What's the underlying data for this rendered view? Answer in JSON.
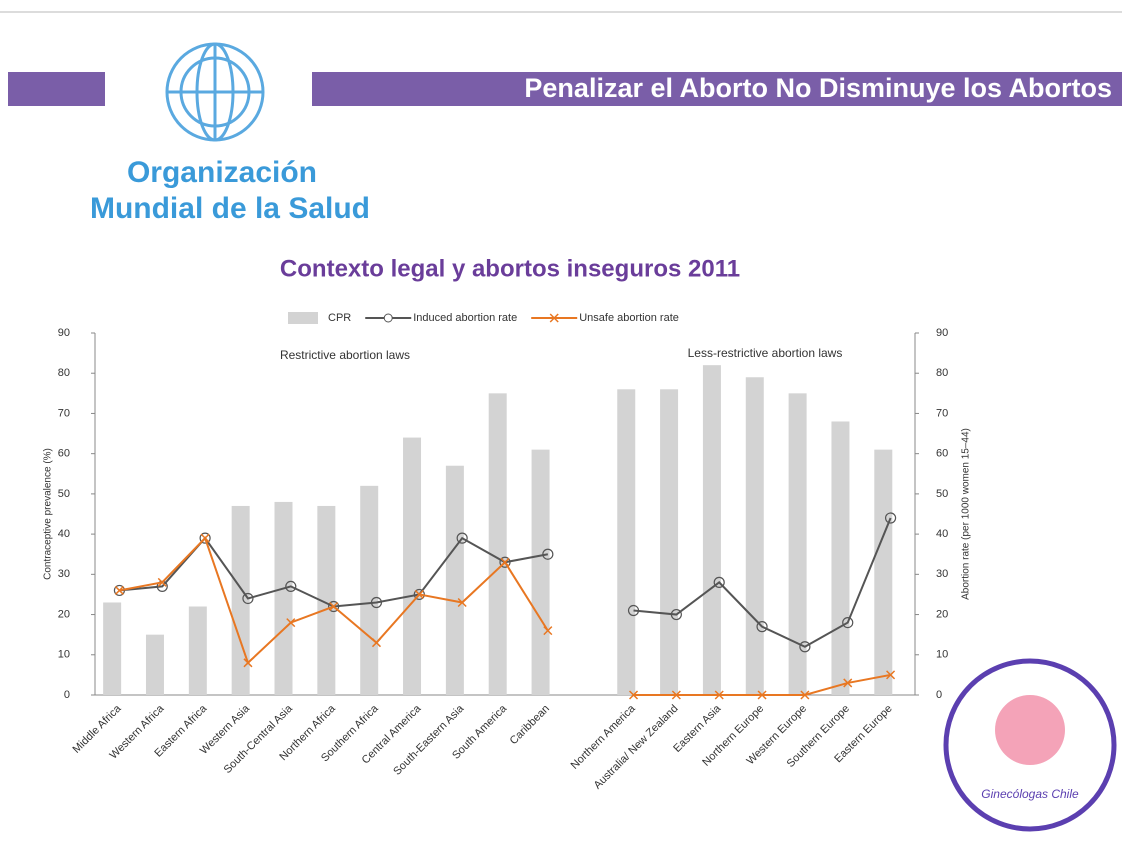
{
  "slide": {
    "title": "Penalizar el Aborto No Disminuye los Abortos",
    "org": [
      "Organización",
      "Mundial de la Salud"
    ],
    "badge": "Ginecólogas Chile"
  },
  "chart_data": {
    "type": "bar-line",
    "title": "Contexto legal y abortos inseguros 2011",
    "annotations": [
      "Restrictive abortion laws",
      "Less-restrictive abortion laws"
    ],
    "ylabel": "Contraceptive prevalence (%)",
    "y2label": "Abortion rate (per 1000 women 15–44)",
    "categories": [
      "Middle Africa",
      "Western Africa",
      "Eastern Africa",
      "Western Asia",
      "South-Central Asia",
      "Northern Africa",
      "Southern Africa",
      "Central America",
      "South-Eastern Asia",
      "South America",
      "Caribbean",
      null,
      "Northern America",
      "Australia/ New Zealand",
      "Eastern Asia",
      "Northern Europe",
      "Western Europe",
      "Southern Europe",
      "Eastern Europe"
    ],
    "series": [
      {
        "name": "CPR",
        "color": "#d3d3d3",
        "kind": "bar",
        "values": [
          23,
          15,
          22,
          47,
          48,
          47,
          52,
          64,
          57,
          75,
          61,
          null,
          76,
          76,
          82,
          79,
          75,
          68,
          61
        ]
      },
      {
        "name": "Induced abortion rate",
        "color": "#555555",
        "kind": "line",
        "marker": "circle",
        "axis": "y2",
        "values": [
          26,
          27,
          39,
          24,
          27,
          22,
          23,
          25,
          39,
          33,
          35,
          null,
          21,
          20,
          28,
          17,
          12,
          18,
          44
        ]
      },
      {
        "name": "Unsafe abortion rate",
        "color": "#e87722",
        "kind": "line",
        "marker": "x",
        "axis": "y2",
        "values": [
          26,
          28,
          39,
          8,
          18,
          22,
          13,
          25,
          23,
          33,
          16,
          null,
          0,
          0,
          0,
          0,
          0,
          3,
          5
        ]
      }
    ],
    "ylim": [
      0,
      90
    ],
    "yticks": [
      0,
      10,
      20,
      30,
      40,
      50,
      60,
      70,
      80,
      90
    ],
    "y2lim": [
      0,
      90
    ],
    "y2ticks": [
      0,
      10,
      20,
      30,
      40,
      50,
      60,
      70,
      80,
      90
    ],
    "grid": false
  }
}
